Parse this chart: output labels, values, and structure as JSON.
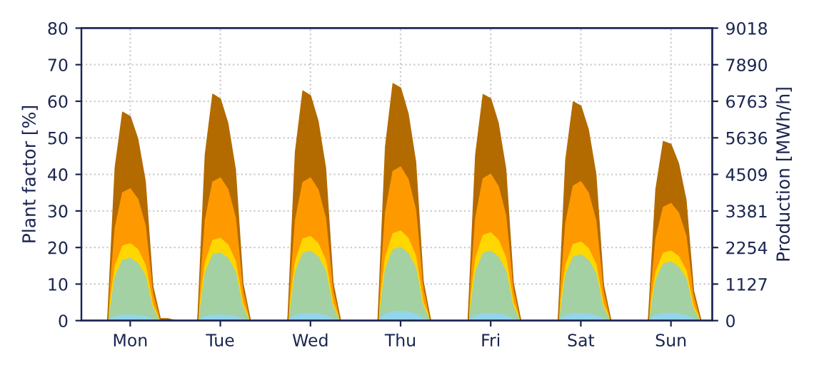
{
  "chart_data": {
    "type": "area",
    "stacked": true,
    "ylabel": "Plant factor [%]",
    "y2label": "Production [MWh/h]",
    "categories": [
      null,
      null,
      null,
      null,
      null,
      null,
      "Mon",
      null,
      null,
      null,
      null,
      null,
      null,
      null,
      null,
      null,
      null,
      null,
      "Tue",
      null,
      null,
      null,
      null,
      null,
      null,
      null,
      null,
      null,
      null,
      null,
      "Wed",
      null,
      null,
      null,
      null,
      null,
      null,
      null,
      null,
      null,
      null,
      null,
      "Thu",
      null,
      null,
      null,
      null,
      null,
      null,
      null,
      null,
      null,
      null,
      null,
      "Fri",
      null,
      null,
      null,
      null,
      null,
      null,
      null,
      null,
      null,
      null,
      null,
      "Sat",
      null,
      null,
      null,
      null,
      null,
      null,
      null,
      null,
      null,
      null,
      null,
      "Sun",
      null,
      null,
      null,
      null,
      null
    ],
    "ylim": [
      0,
      80
    ],
    "yticks": [
      0,
      10,
      20,
      30,
      40,
      50,
      60,
      70,
      80
    ],
    "y2lim": [
      0,
      9018
    ],
    "y2ticks": [
      0,
      1127,
      2254,
      3381,
      4509,
      5636,
      6763,
      7890,
      9018
    ],
    "grid": true,
    "line_style": "solid",
    "legend": false,
    "series": [
      {
        "color": "#93d5ec",
        "values": [
          0,
          0,
          0,
          0,
          1.1,
          1.5,
          1.5,
          1.4,
          1.1,
          0.3,
          0,
          0,
          0,
          0,
          0,
          0,
          1.1,
          1.5,
          1.5,
          1.4,
          1.1,
          0.3,
          0,
          0,
          0,
          0,
          0,
          0,
          1.4,
          1.9,
          2,
          1.8,
          1.4,
          0.4,
          0,
          0,
          0,
          0,
          0,
          0,
          1.8,
          2.4,
          2.5,
          2.3,
          1.8,
          0.5,
          0,
          0,
          0,
          0,
          0,
          0,
          1.4,
          1.9,
          2,
          1.8,
          1.4,
          0.4,
          0,
          0,
          0,
          0,
          0,
          0,
          1.4,
          1.9,
          2,
          1.8,
          1.4,
          0.4,
          0,
          0,
          0,
          0,
          0,
          0,
          1.4,
          1.9,
          2,
          1.8,
          1.4,
          0.4,
          0,
          0
        ]
      },
      {
        "color": "#a3d1a3",
        "values": [
          0,
          0,
          0,
          0,
          10.9,
          15,
          15.5,
          14.3,
          11.2,
          3.1,
          0,
          0,
          0,
          0,
          0,
          0,
          11.9,
          16.5,
          17,
          15.6,
          12.2,
          3.4,
          0,
          0,
          0,
          0,
          0,
          0,
          11.9,
          16.5,
          17,
          15.6,
          12.2,
          3.4,
          0,
          0,
          0,
          0,
          0,
          0,
          12.3,
          17,
          17.5,
          16.1,
          12.6,
          3.5,
          0,
          0,
          0,
          0,
          0,
          0,
          11.9,
          16.5,
          17,
          15.6,
          12.2,
          3.4,
          0,
          0,
          0,
          0,
          0,
          0,
          11.2,
          15.5,
          16,
          14.7,
          11.5,
          3.2,
          0,
          0,
          0,
          0,
          0,
          0,
          9.8,
          13.6,
          14,
          12.9,
          10.1,
          2.8,
          0,
          0
        ]
      },
      {
        "color": "#ffd700",
        "values": [
          0,
          0,
          0,
          0,
          2.8,
          3.9,
          4,
          3.7,
          2.9,
          0.8,
          0,
          0,
          0,
          0,
          0,
          0,
          2.8,
          3.9,
          4,
          3.7,
          2.9,
          0.8,
          0,
          0,
          0,
          0,
          0,
          0,
          2.8,
          3.9,
          4,
          3.7,
          2.9,
          0.8,
          0,
          0,
          0,
          0,
          0,
          0,
          3.2,
          4.4,
          4.5,
          4.1,
          3.2,
          0.9,
          0,
          0,
          0,
          0,
          0,
          0,
          3.5,
          4.9,
          5,
          4.6,
          3.6,
          1,
          0,
          0,
          0,
          0,
          0,
          0,
          2.5,
          3.4,
          3.5,
          3.2,
          2.5,
          0.7,
          0,
          0,
          0,
          0,
          0,
          0,
          2.1,
          2.9,
          3,
          2.8,
          2.2,
          0.6,
          0,
          0
        ]
      },
      {
        "color": "#ff9900",
        "values": [
          0,
          0,
          0,
          0,
          10.5,
          14.6,
          15,
          13.8,
          10.8,
          3,
          0,
          0,
          0,
          0,
          0,
          0,
          11.6,
          16,
          16.5,
          15.2,
          11.9,
          3.3,
          0,
          0,
          0,
          0,
          0,
          0,
          11.2,
          15.5,
          16,
          14.7,
          11.5,
          3.2,
          0,
          0,
          0,
          0,
          0,
          0,
          12.3,
          17,
          17.5,
          16.1,
          12.6,
          3.5,
          0,
          0,
          0,
          0,
          0,
          0,
          11.2,
          15.5,
          16,
          14.7,
          11.5,
          3.2,
          0,
          0,
          0,
          0,
          0,
          0,
          11.6,
          16,
          16.5,
          15.2,
          11.9,
          3.3,
          0,
          0,
          0,
          0,
          0,
          0,
          9.1,
          12.6,
          13,
          12,
          9.4,
          2.6,
          0,
          0
        ]
      },
      {
        "color": "#b36b00",
        "values": [
          0,
          0,
          0,
          0,
          16.5,
          22,
          19.8,
          16.5,
          12.1,
          2.2,
          0.5,
          0.5,
          0,
          0,
          0,
          0,
          18,
          24,
          21.6,
          18,
          13.2,
          2.4,
          0,
          0,
          0,
          0,
          0,
          0,
          18.8,
          25,
          22.5,
          18.8,
          13.8,
          2.5,
          0,
          0,
          0,
          0,
          0,
          0,
          18,
          24,
          21.6,
          18,
          13.2,
          2.4,
          0,
          0,
          0,
          0,
          0,
          0,
          17.3,
          23,
          20.7,
          17.3,
          12.7,
          2.3,
          0,
          0,
          0,
          0,
          0,
          0,
          17.3,
          23,
          20.7,
          17.3,
          12.7,
          2.3,
          0,
          0,
          0,
          0,
          0,
          0,
          13.5,
          18,
          16.2,
          13.5,
          9.9,
          1.8,
          0,
          0
        ]
      }
    ]
  }
}
